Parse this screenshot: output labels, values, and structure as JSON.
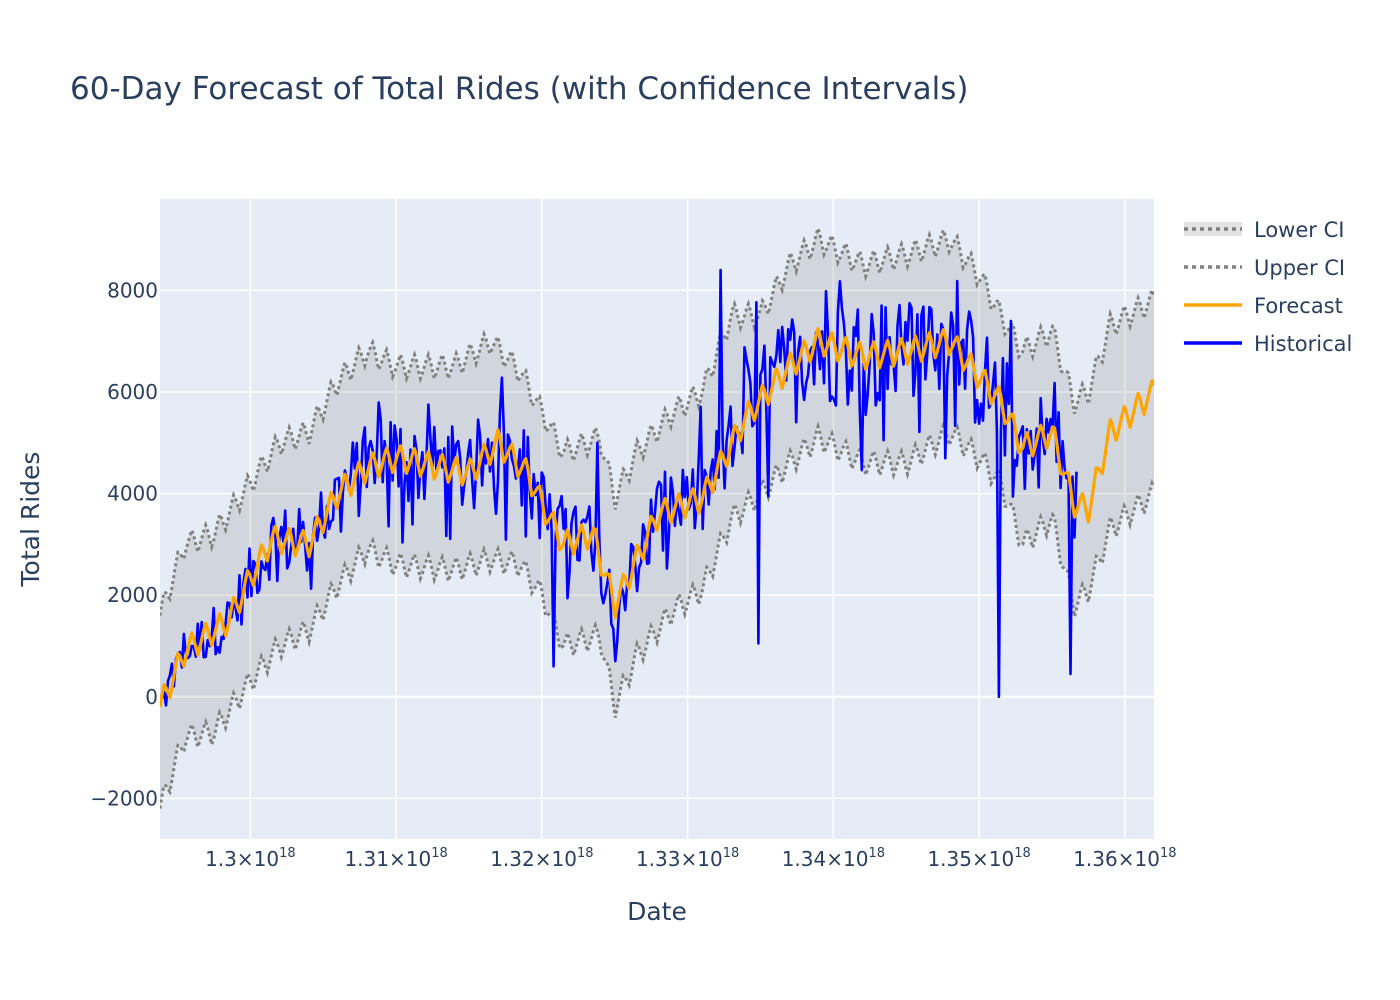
{
  "chart_data": {
    "type": "line",
    "title": "60-Day Forecast of Total Rides (with Confidence Intervals)",
    "xlabel": "Date",
    "ylabel": "Total Rides",
    "xlim": [
      1.2938e+18,
      1.362e+18
    ],
    "ylim": [
      -2800,
      9800
    ],
    "x_tick_values": [
      1.3e+18,
      1.31e+18,
      1.32e+18,
      1.33e+18,
      1.34e+18,
      1.35e+18,
      1.36e+18
    ],
    "x_tick_labels": [
      {
        "base": "1.3×10",
        "exp": "18"
      },
      {
        "base": "1.31×10",
        "exp": "18"
      },
      {
        "base": "1.32×10",
        "exp": "18"
      },
      {
        "base": "1.33×10",
        "exp": "18"
      },
      {
        "base": "1.34×10",
        "exp": "18"
      },
      {
        "base": "1.35×10",
        "exp": "18"
      },
      {
        "base": "1.36×10",
        "exp": "18"
      }
    ],
    "y_tick_values": [
      -2000,
      0,
      2000,
      4000,
      6000,
      8000
    ],
    "y_tick_labels": [
      "−2000",
      "0",
      "2000",
      "4000",
      "6000",
      "8000"
    ],
    "grid": true,
    "legend_position": "top-right",
    "historical_end_x": 1.3568e+18,
    "forecast_anchors": [
      [
        1.2938e+18,
        -200
      ],
      [
        1.2955e+18,
        900
      ],
      [
        1.2985e+18,
        1500
      ],
      [
        1.3003e+18,
        2500
      ],
      [
        1.3015e+18,
        3100
      ],
      [
        1.304e+18,
        3000
      ],
      [
        1.306e+18,
        4000
      ],
      [
        1.308e+18,
        4500
      ],
      [
        1.31e+18,
        4700
      ],
      [
        1.315e+18,
        4400
      ],
      [
        1.317e+18,
        5000
      ],
      [
        1.319e+18,
        4400
      ],
      [
        1.32e+18,
        3800
      ],
      [
        1.3215e+18,
        3000
      ],
      [
        1.3235e+18,
        3200
      ],
      [
        1.325e+18,
        1800
      ],
      [
        1.3265e+18,
        2700
      ],
      [
        1.328e+18,
        3600
      ],
      [
        1.331e+18,
        3900
      ],
      [
        1.334e+18,
        5500
      ],
      [
        1.337e+18,
        6500
      ],
      [
        1.339e+18,
        7000
      ],
      [
        1.342e+18,
        6700
      ],
      [
        1.345e+18,
        6800
      ],
      [
        1.348e+18,
        7000
      ],
      [
        1.35e+18,
        6300
      ],
      [
        1.3515e+18,
        5800
      ],
      [
        1.353e+18,
        4900
      ],
      [
        1.355e+18,
        5200
      ],
      [
        1.3565e+18,
        3800
      ],
      [
        1.3575e+18,
        3700
      ],
      [
        1.359e+18,
        5200
      ],
      [
        1.362e+18,
        6000
      ]
    ],
    "ci_anchors": [
      [
        1.2938e+18,
        -2200,
        1600
      ],
      [
        1.2955e+18,
        -800,
        3000
      ],
      [
        1.2975e+18,
        -700,
        3200
      ],
      [
        1.3e+18,
        300,
        4200
      ],
      [
        1.302e+18,
        1000,
        5000
      ],
      [
        1.304e+18,
        1300,
        5200
      ],
      [
        1.306e+18,
        2200,
        6200
      ],
      [
        1.308e+18,
        2900,
        6800
      ],
      [
        1.31e+18,
        2600,
        6500
      ],
      [
        1.314e+18,
        2500,
        6500
      ],
      [
        1.3165e+18,
        2700,
        7000
      ],
      [
        1.3185e+18,
        2600,
        6400
      ],
      [
        1.32e+18,
        2000,
        5600
      ],
      [
        1.3215e+18,
        1000,
        4800
      ],
      [
        1.324e+18,
        1200,
        5100
      ],
      [
        1.325e+18,
        -200,
        3900
      ],
      [
        1.3265e+18,
        800,
        4800
      ],
      [
        1.329e+18,
        1700,
        5600
      ],
      [
        1.331e+18,
        2100,
        6000
      ],
      [
        1.333e+18,
        3500,
        7500
      ],
      [
        1.335e+18,
        4000,
        7500
      ],
      [
        1.337e+18,
        4600,
        8500
      ],
      [
        1.339e+18,
        5100,
        9000
      ],
      [
        1.342e+18,
        4600,
        8500
      ],
      [
        1.345e+18,
        4600,
        8700
      ],
      [
        1.348e+18,
        5200,
        9000
      ],
      [
        1.35e+18,
        4700,
        8300
      ],
      [
        1.3515e+18,
        4200,
        7500
      ],
      [
        1.353e+18,
        3000,
        6800
      ],
      [
        1.355e+18,
        3500,
        7200
      ],
      [
        1.3565e+18,
        1800,
        5800
      ],
      [
        1.3575e+18,
        2100,
        6000
      ],
      [
        1.359e+18,
        3300,
        7300
      ],
      [
        1.362e+18,
        4000,
        7800
      ]
    ],
    "historical_spikes": [
      [
        1.3208e+18,
        600
      ],
      [
        1.325e+18,
        700
      ],
      [
        1.3238e+18,
        5000
      ],
      [
        1.3322e+18,
        8400
      ],
      [
        1.3349e+18,
        1050
      ],
      [
        1.3514e+18,
        0
      ],
      [
        1.3522e+18,
        7400
      ],
      [
        1.3563e+18,
        450
      ]
    ],
    "series": [
      {
        "name": "Lower CI",
        "color": "#808080",
        "dash": "dot",
        "fill": "rgba(128,128,128,0.2)"
      },
      {
        "name": "Upper CI",
        "color": "#808080",
        "dash": "dot"
      },
      {
        "name": "Forecast",
        "color": "#FFA500"
      },
      {
        "name": "Historical",
        "color": "#0000FF"
      }
    ]
  }
}
